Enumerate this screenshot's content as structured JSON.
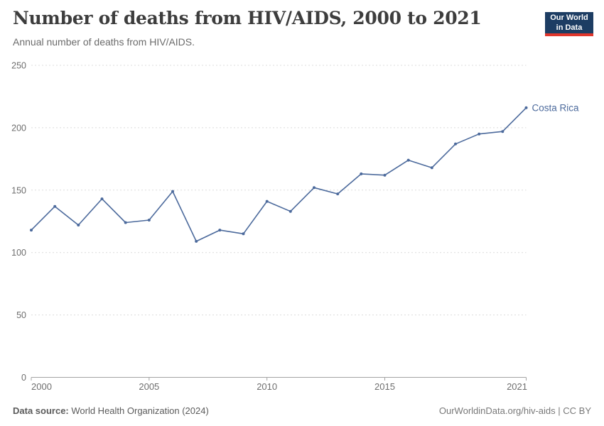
{
  "header": {
    "title": "Number of deaths from HIV/AIDS, 2000 to 2021",
    "subtitle": "Annual number of deaths from HIV/AIDS.",
    "logo": {
      "line1": "Our World",
      "line2": "in Data"
    }
  },
  "footer": {
    "source_label": "Data source:",
    "source_text": " World Health Organization (2024)",
    "credit": "OurWorldinData.org/hiv-aids | CC BY"
  },
  "colors": {
    "line": "#4c6a9c",
    "series_label": "#4c6a9c",
    "grid": "#dcdcdc",
    "axis": "#a3a3a3",
    "tick_label": "#6e6e6e",
    "logo_bg": "#1d3d63",
    "logo_red": "#e0362c"
  },
  "chart_data": {
    "type": "line",
    "title": "Number of deaths from HIV/AIDS, 2000 to 2021",
    "subtitle": "Annual number of deaths from HIV/AIDS.",
    "xlabel": "",
    "ylabel": "",
    "xlim": [
      2000,
      2021
    ],
    "ylim": [
      0,
      250
    ],
    "xticks": [
      2000,
      2005,
      2010,
      2015,
      2021
    ],
    "yticks": [
      0,
      50,
      100,
      150,
      200,
      250
    ],
    "grid": "horizontal-dashed",
    "legend_position": "end-of-line-label",
    "series": [
      {
        "name": "Costa Rica",
        "x": [
          2000,
          2001,
          2002,
          2003,
          2004,
          2005,
          2006,
          2007,
          2008,
          2009,
          2010,
          2011,
          2012,
          2013,
          2014,
          2015,
          2016,
          2017,
          2018,
          2019,
          2020,
          2021
        ],
        "values": [
          118,
          137,
          122,
          143,
          124,
          126,
          149,
          109,
          118,
          115,
          141,
          133,
          152,
          147,
          163,
          162,
          174,
          168,
          187,
          195,
          197,
          216
        ]
      }
    ]
  }
}
